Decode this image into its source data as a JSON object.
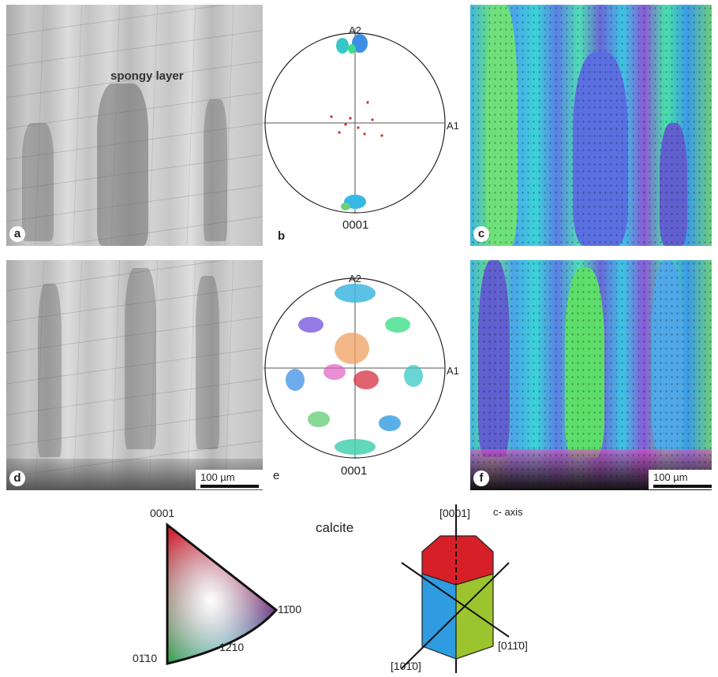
{
  "panels": {
    "a": {
      "label": "a",
      "annotation": "spongy layer"
    },
    "b": {
      "label": "b",
      "axis_top": "A2",
      "axis_right": "A1",
      "bottom": "0001"
    },
    "c": {
      "label": "c"
    },
    "d": {
      "label": "d",
      "scalebar": "100 µm"
    },
    "e": {
      "label": "e",
      "axis_top": "A2",
      "axis_right": "A1",
      "bottom": "0001"
    },
    "f": {
      "label": "f",
      "scalebar": "100 µm"
    }
  },
  "legend": {
    "title": "calcite",
    "triangle": {
      "top": "0001",
      "right": "11̄00",
      "bottom_left": "01̄10",
      "bottom_mid": "12̄10"
    },
    "crystal": {
      "top": "[0001]",
      "top_note": "c- axis",
      "right": "[011̄0]",
      "left": "[101̄0]"
    },
    "colors": {
      "red": "#d61f26",
      "blue": "#2f9be0",
      "green": "#9cc42e"
    }
  }
}
